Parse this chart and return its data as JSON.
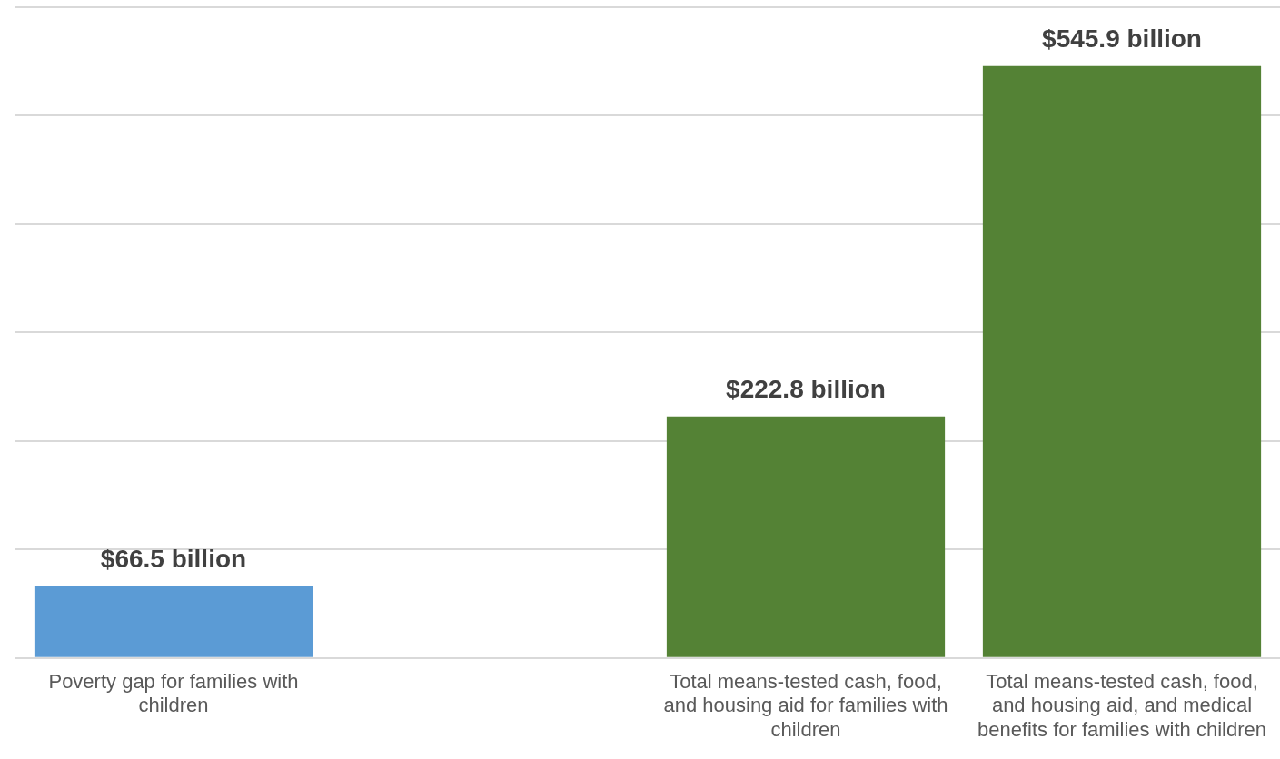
{
  "chart_data": {
    "type": "bar",
    "categories": [
      "Poverty gap for families with children",
      null,
      "Total means-tested cash, food, and housing aid for families with children",
      "Total means-tested cash, food, and housing aid, and medical benefits for families with children"
    ],
    "values": [
      66.5,
      null,
      222.8,
      545.9
    ],
    "colors": [
      "#5b9bd5",
      "#548235",
      "#548235",
      "#548235"
    ],
    "value_labels": [
      "$66.5 billion",
      null,
      "$222.8 billion",
      "$545.9 billion"
    ],
    "ylim": [
      0,
      600
    ],
    "yticks": [
      {
        "value": 0,
        "label": null
      },
      {
        "value": 100,
        "label": null
      },
      {
        "value": 200,
        "label": null
      },
      {
        "value": 300,
        "label": null
      },
      {
        "value": 400,
        "label": null
      },
      {
        "value": 500,
        "label": null
      },
      {
        "value": 600,
        "label": null
      }
    ],
    "tick_labels": "x",
    "grid": "y",
    "legend": false
  }
}
